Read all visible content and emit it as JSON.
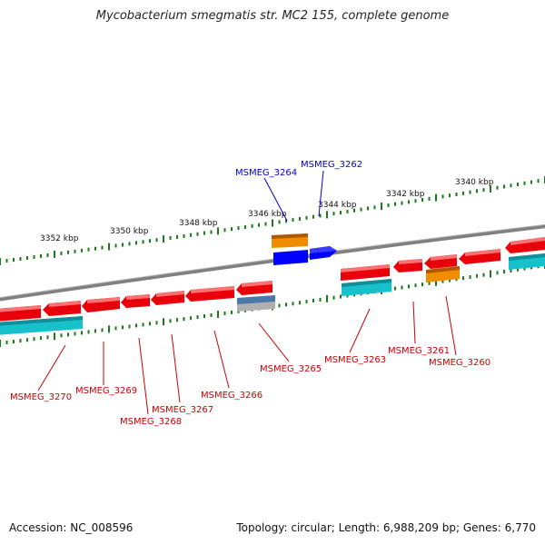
{
  "title": "Mycobacterium smegmatis str. MC2 155, complete genome",
  "footer": {
    "accession": "Accession: NC_008596",
    "summary": "Topology: circular; Length: 6,988,209 bp; Genes: 6,770"
  },
  "colors": {
    "forward_gene": "#e8000b",
    "reverse_gene": "#e8000b",
    "cds_cyan": "#17c1cc",
    "misc_orange": "#f08c00",
    "highlight_blue": "#0000ff",
    "backbone": "#808080",
    "ticks": "#1a7a1a",
    "label_red": "#cc0000",
    "label_blue": "#0000cc"
  },
  "scale_labels": [
    "3352 kbp",
    "3350 kbp",
    "3348 kbp",
    "3346 kbp",
    "3344 kbp",
    "3342 kbp",
    "3340 kbp"
  ],
  "gene_labels": [
    {
      "text": "MSMEG_3264",
      "color": "blue"
    },
    {
      "text": "MSMEG_3262",
      "color": "blue"
    },
    {
      "text": "MSMEG_3270",
      "color": "red"
    },
    {
      "text": "MSMEG_3269",
      "color": "red"
    },
    {
      "text": "MSMEG_3268",
      "color": "red"
    },
    {
      "text": "MSMEG_3267",
      "color": "red"
    },
    {
      "text": "MSMEG_3266",
      "color": "red"
    },
    {
      "text": "MSMEG_3265",
      "color": "red"
    },
    {
      "text": "MSMEG_3263",
      "color": "red"
    },
    {
      "text": "MSMEG_3261",
      "color": "red"
    },
    {
      "text": "MSMEG_3260",
      "color": "red"
    }
  ]
}
